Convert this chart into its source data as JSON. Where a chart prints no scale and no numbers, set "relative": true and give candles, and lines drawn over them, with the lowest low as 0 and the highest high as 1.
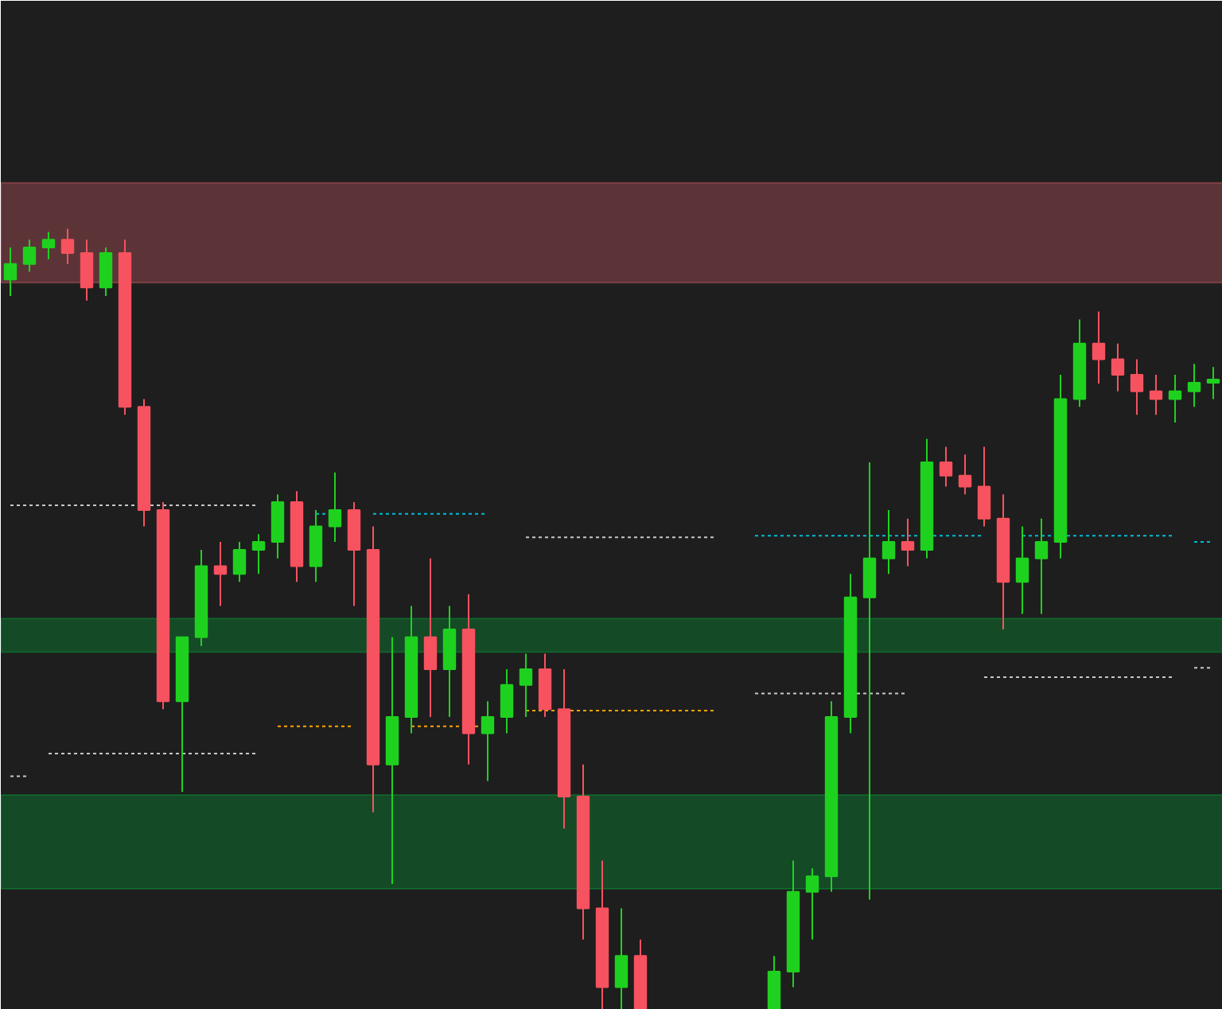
{
  "chart_data": {
    "type": "candlestick",
    "relative": true,
    "categories": [
      null,
      null,
      null,
      null,
      null,
      null,
      null,
      null,
      null,
      null,
      null,
      null,
      null,
      null,
      null,
      null,
      null,
      null,
      null,
      null,
      null,
      null,
      null,
      null,
      null,
      null,
      null,
      null,
      null,
      null,
      null,
      null,
      null,
      null,
      null,
      null,
      null,
      null,
      null,
      null,
      null,
      null,
      null,
      null,
      null,
      null,
      null,
      null,
      null,
      null,
      null,
      null,
      null,
      null,
      null,
      null,
      null,
      null,
      null,
      null,
      null,
      null,
      null,
      null
    ],
    "ohlc": [
      [
        0.935,
        0.976,
        0.914,
        0.955
      ],
      [
        0.955,
        0.986,
        0.945,
        0.976
      ],
      [
        0.976,
        0.996,
        0.961,
        0.986
      ],
      [
        0.986,
        1.0,
        0.955,
        0.969
      ],
      [
        0.969,
        0.986,
        0.908,
        0.925
      ],
      [
        0.925,
        0.976,
        0.914,
        0.969
      ],
      [
        0.969,
        0.986,
        0.762,
        0.772
      ],
      [
        0.772,
        0.782,
        0.619,
        0.64
      ],
      [
        0.64,
        0.65,
        0.385,
        0.395
      ],
      [
        0.395,
        0.477,
        0.279,
        0.477
      ],
      [
        0.477,
        0.589,
        0.466,
        0.568
      ],
      [
        0.568,
        0.599,
        0.517,
        0.558
      ],
      [
        0.558,
        0.599,
        0.548,
        0.589
      ],
      [
        0.589,
        0.609,
        0.558,
        0.599
      ],
      [
        0.599,
        0.66,
        0.578,
        0.65
      ],
      [
        0.65,
        0.664,
        0.548,
        0.568
      ],
      [
        0.568,
        0.64,
        0.548,
        0.619
      ],
      [
        0.619,
        0.688,
        0.599,
        0.64
      ],
      [
        0.64,
        0.65,
        0.517,
        0.589
      ],
      [
        0.589,
        0.619,
        0.253,
        0.314
      ],
      [
        0.314,
        0.477,
        0.161,
        0.375
      ],
      [
        0.375,
        0.517,
        0.354,
        0.477
      ],
      [
        0.477,
        0.578,
        0.375,
        0.436
      ],
      [
        0.436,
        0.517,
        0.375,
        0.487
      ],
      [
        0.487,
        0.532,
        0.314,
        0.354
      ],
      [
        0.354,
        0.395,
        0.293,
        0.375
      ],
      [
        0.375,
        0.436,
        0.354,
        0.416
      ],
      [
        0.416,
        0.456,
        0.375,
        0.436
      ],
      [
        0.436,
        0.456,
        0.375,
        0.385
      ],
      [
        0.385,
        0.436,
        0.232,
        0.273
      ],
      [
        0.273,
        0.314,
        0.09,
        0.13
      ],
      [
        0.13,
        0.191,
        0.0,
        0.029
      ],
      [
        0.029,
        0.13,
        0.0,
        0.069
      ],
      [
        0.069,
        0.09,
        0.0,
        0.0
      ],
      null,
      null,
      null,
      null,
      null,
      null,
      [
        0.0,
        0.069,
        0.0,
        0.049
      ],
      [
        0.049,
        0.191,
        0.029,
        0.151
      ],
      [
        0.151,
        0.181,
        0.09,
        0.171
      ],
      [
        0.171,
        0.395,
        0.151,
        0.375
      ],
      [
        0.375,
        0.558,
        0.354,
        0.528
      ],
      [
        0.528,
        0.701,
        0.141,
        0.578
      ],
      [
        0.578,
        0.64,
        0.558,
        0.599
      ],
      [
        0.599,
        0.629,
        0.568,
        0.589
      ],
      [
        0.589,
        0.731,
        0.578,
        0.701
      ],
      [
        0.701,
        0.721,
        0.67,
        0.684
      ],
      [
        0.684,
        0.711,
        0.66,
        0.67
      ],
      [
        0.67,
        0.721,
        0.619,
        0.629
      ],
      [
        0.629,
        0.66,
        0.487,
        0.548
      ],
      [
        0.548,
        0.619,
        0.507,
        0.578
      ],
      [
        0.578,
        0.629,
        0.507,
        0.599
      ],
      [
        0.599,
        0.813,
        0.578,
        0.782
      ],
      [
        0.782,
        0.884,
        0.772,
        0.853
      ],
      [
        0.853,
        0.894,
        0.802,
        0.833
      ],
      [
        0.833,
        0.853,
        0.792,
        0.813
      ],
      [
        0.813,
        0.833,
        0.762,
        0.792
      ],
      [
        0.792,
        0.813,
        0.762,
        0.782
      ],
      [
        0.782,
        0.813,
        0.752,
        0.792
      ],
      [
        0.792,
        0.827,
        0.772,
        0.803
      ],
      [
        0.803,
        0.823,
        0.782,
        0.807
      ]
    ],
    "colors": [
      "#1fd11f",
      "#1fd11f",
      "#1fd11f",
      "#f7525f",
      "#f7525f",
      "#1fd11f",
      "#f7525f",
      "#f7525f",
      "#f7525f",
      "#1fd11f",
      "#1fd11f",
      "#f7525f",
      "#1fd11f",
      "#1fd11f",
      "#1fd11f",
      "#f7525f",
      "#1fd11f",
      "#1fd11f",
      "#f7525f",
      "#f7525f",
      "#1fd11f",
      "#1fd11f",
      "#f7525f",
      "#1fd11f",
      "#f7525f",
      "#1fd11f",
      "#1fd11f",
      "#1fd11f",
      "#f7525f",
      "#f7525f",
      "#f7525f",
      "#f7525f",
      "#1fd11f",
      "#f7525f",
      null,
      null,
      null,
      null,
      null,
      null,
      "#1fd11f",
      "#1fd11f",
      "#1fd11f",
      "#1fd11f",
      "#1fd11f",
      "#1fd11f",
      "#1fd11f",
      "#f7525f",
      "#1fd11f",
      "#f7525f",
      "#f7525f",
      "#f7525f",
      "#f7525f",
      "#1fd11f",
      "#1fd11f",
      "#1fd11f",
      "#1fd11f",
      "#f7525f",
      "#f7525f",
      "#f7525f",
      "#f7525f",
      "#1fd11f",
      "#1fd11f",
      "#1fd11f"
    ],
    "series": [
      {
        "type": "line",
        "color": "#c8c8c8",
        "line_style": "dashed",
        "values": [
          0.646,
          0.646,
          0.646,
          0.646,
          0.646,
          0.646,
          0.646,
          0.646,
          0.646,
          0.646,
          0.646,
          0.646,
          0.646,
          0.646,
          null,
          null,
          null,
          null,
          null,
          null,
          null,
          null,
          null,
          null,
          null,
          null,
          null,
          null,
          null,
          null,
          null,
          null,
          null,
          null,
          null,
          null,
          null,
          null,
          null,
          null,
          null,
          null,
          null,
          null,
          null,
          null,
          null,
          null,
          null,
          null,
          null,
          null,
          null,
          null,
          null,
          null,
          null,
          null,
          null,
          null,
          null,
          null,
          null,
          null
        ]
      },
      {
        "type": "line",
        "color": "#00bcd4",
        "line_style": "dashed",
        "values": [
          null,
          null,
          null,
          null,
          null,
          null,
          null,
          null,
          null,
          null,
          null,
          null,
          null,
          null,
          null,
          null,
          0.635,
          0.635,
          null,
          0.635,
          0.635,
          0.635,
          0.635,
          0.635,
          0.635,
          0.635,
          null,
          null,
          null,
          null,
          null,
          null,
          null,
          null,
          null,
          null,
          null,
          null,
          null,
          null,
          null,
          null,
          null,
          null,
          null,
          null,
          null,
          null,
          null,
          null,
          null,
          null,
          null,
          null,
          null,
          null,
          null,
          null,
          null,
          null,
          null,
          null,
          null,
          null
        ]
      },
      {
        "type": "line",
        "color": "#c8c8c8",
        "line_style": "dashed",
        "values": [
          null,
          null,
          null,
          null,
          null,
          null,
          null,
          null,
          null,
          null,
          null,
          null,
          null,
          null,
          null,
          null,
          null,
          null,
          null,
          null,
          null,
          null,
          null,
          null,
          null,
          null,
          null,
          0.605,
          0.605,
          0.605,
          0.605,
          0.605,
          0.605,
          0.605,
          0.605,
          0.605,
          0.605,
          0.605,
          null,
          null,
          null,
          null,
          null,
          null,
          null,
          null,
          null,
          null,
          null,
          null,
          null,
          null,
          null,
          null,
          null,
          null,
          null,
          null,
          null,
          null,
          null,
          null,
          null,
          null
        ]
      },
      {
        "type": "line",
        "color": "#00bcd4",
        "line_style": "dashed",
        "values": [
          null,
          null,
          null,
          null,
          null,
          null,
          null,
          null,
          null,
          null,
          null,
          null,
          null,
          null,
          null,
          null,
          null,
          null,
          null,
          null,
          null,
          null,
          null,
          null,
          null,
          null,
          null,
          null,
          null,
          null,
          null,
          null,
          null,
          null,
          null,
          null,
          null,
          null,
          null,
          0.607,
          0.607,
          0.607,
          0.607,
          0.607,
          0.607,
          0.607,
          0.607,
          0.607,
          0.607,
          0.607,
          0.607,
          0.607,
          null,
          0.607,
          0.607,
          0.607,
          0.607,
          0.607,
          0.607,
          0.607,
          0.607,
          0.607,
          null,
          null
        ]
      },
      {
        "type": "line",
        "color": "#00bcd4",
        "line_style": "dashed",
        "values": [
          null,
          null,
          null,
          null,
          null,
          null,
          null,
          null,
          null,
          null,
          null,
          null,
          null,
          null,
          null,
          null,
          null,
          null,
          null,
          null,
          null,
          null,
          null,
          null,
          null,
          null,
          null,
          null,
          null,
          null,
          null,
          null,
          null,
          null,
          null,
          null,
          null,
          null,
          null,
          null,
          null,
          null,
          null,
          null,
          null,
          null,
          null,
          null,
          null,
          null,
          null,
          null,
          null,
          null,
          null,
          null,
          null,
          null,
          null,
          null,
          null,
          null,
          0.599,
          0.599
        ]
      },
      {
        "type": "line",
        "color": "#c8c8c8",
        "line_style": "dashed",
        "values": [
          null,
          null,
          0.328,
          0.328,
          0.328,
          0.328,
          0.328,
          0.328,
          0.328,
          0.328,
          0.328,
          0.328,
          0.328,
          0.328,
          null,
          null,
          null,
          null,
          null,
          null,
          null,
          null,
          null,
          null,
          null,
          null,
          null,
          null,
          null,
          null,
          null,
          null,
          null,
          null,
          null,
          null,
          null,
          null,
          null,
          null,
          null,
          null,
          null,
          null,
          null,
          null,
          null,
          null,
          null,
          null,
          null,
          null,
          null,
          null,
          null,
          null,
          null,
          null,
          null,
          null,
          null,
          null,
          null,
          null
        ]
      },
      {
        "type": "line",
        "color": "#c8c8c8",
        "line_style": "dashed",
        "values": [
          0.299,
          0.299,
          null,
          null,
          null,
          null,
          null,
          null,
          null,
          null,
          null,
          null,
          null,
          null,
          null,
          null,
          null,
          null,
          null,
          null,
          null,
          null,
          null,
          null,
          null,
          null,
          null,
          null,
          null,
          null,
          null,
          null,
          null,
          null,
          null,
          null,
          null,
          null,
          null,
          null,
          null,
          null,
          null,
          null,
          null,
          null,
          null,
          null,
          null,
          null,
          null,
          null,
          null,
          null,
          null,
          null,
          null,
          null,
          null,
          null,
          null,
          null,
          null,
          null
        ]
      },
      {
        "type": "line",
        "color": "#ffa500",
        "line_style": "dashed",
        "values": [
          null,
          null,
          null,
          null,
          null,
          null,
          null,
          null,
          null,
          null,
          null,
          null,
          null,
          null,
          0.363,
          0.363,
          0.363,
          0.363,
          0.363,
          null,
          null,
          0.363,
          0.363,
          0.363,
          0.363,
          0.363,
          null,
          null,
          null,
          null,
          null,
          null,
          null,
          null,
          null,
          null,
          null,
          null,
          null,
          null,
          null,
          null,
          null,
          null,
          null,
          null,
          null,
          null,
          null,
          null,
          null,
          null,
          null,
          null,
          null,
          null,
          null,
          null,
          null,
          null,
          null,
          null,
          null,
          null
        ]
      },
      {
        "type": "line",
        "color": "#ffa500",
        "line_style": "dashed",
        "values": [
          null,
          null,
          null,
          null,
          null,
          null,
          null,
          null,
          null,
          null,
          null,
          null,
          null,
          null,
          null,
          null,
          null,
          null,
          null,
          null,
          null,
          null,
          null,
          null,
          null,
          null,
          null,
          0.383,
          0.383,
          0.383,
          0.383,
          0.383,
          0.383,
          0.383,
          0.383,
          0.383,
          0.383,
          0.383,
          null,
          null,
          null,
          null,
          null,
          null,
          null,
          null,
          null,
          null,
          null,
          null,
          null,
          null,
          null,
          null,
          null,
          null,
          null,
          null,
          null,
          null,
          null,
          null,
          null,
          null
        ]
      },
      {
        "type": "line",
        "color": "#c8c8c8",
        "line_style": "dashed",
        "values": [
          null,
          null,
          null,
          null,
          null,
          null,
          null,
          null,
          null,
          null,
          null,
          null,
          null,
          null,
          null,
          null,
          null,
          null,
          null,
          null,
          null,
          null,
          null,
          null,
          null,
          null,
          null,
          null,
          null,
          null,
          null,
          null,
          null,
          null,
          null,
          null,
          null,
          null,
          null,
          0.405,
          0.405,
          0.405,
          0.405,
          0.405,
          0.405,
          0.405,
          0.405,
          0.405,
          null,
          null,
          null,
          null,
          null,
          null,
          null,
          null,
          null,
          null,
          null,
          null,
          null,
          null,
          null,
          null
        ]
      },
      {
        "type": "line",
        "color": "#c8c8c8",
        "line_style": "dashed",
        "values": [
          null,
          null,
          null,
          null,
          null,
          null,
          null,
          null,
          null,
          null,
          null,
          null,
          null,
          null,
          null,
          null,
          null,
          null,
          null,
          null,
          null,
          null,
          null,
          null,
          null,
          null,
          null,
          null,
          null,
          null,
          null,
          null,
          null,
          null,
          null,
          null,
          null,
          null,
          null,
          null,
          null,
          null,
          null,
          null,
          null,
          null,
          null,
          null,
          null,
          null,
          null,
          0.426,
          0.426,
          0.426,
          0.426,
          0.426,
          0.426,
          0.426,
          0.426,
          0.426,
          0.426,
          0.426,
          null,
          null
        ]
      },
      {
        "type": "line",
        "color": "#c8c8c8",
        "line_style": "dashed",
        "values": [
          null,
          null,
          null,
          null,
          null,
          null,
          null,
          null,
          null,
          null,
          null,
          null,
          null,
          null,
          null,
          null,
          null,
          null,
          null,
          null,
          null,
          null,
          null,
          null,
          null,
          null,
          null,
          null,
          null,
          null,
          null,
          null,
          null,
          null,
          null,
          null,
          null,
          null,
          null,
          null,
          null,
          null,
          null,
          null,
          null,
          null,
          null,
          null,
          null,
          null,
          null,
          null,
          null,
          null,
          null,
          null,
          null,
          null,
          null,
          null,
          null,
          null,
          0.438,
          0.438
        ]
      }
    ],
    "bands": [
      {
        "axis": "y",
        "from": 0.931,
        "to": 1.059,
        "color": "#ff6f7f"
      },
      {
        "axis": "y",
        "from": 0.458,
        "to": 0.501,
        "color": "#00c040"
      },
      {
        "axis": "y",
        "from": 0.155,
        "to": 0.275,
        "color": "#00c040"
      }
    ]
  }
}
